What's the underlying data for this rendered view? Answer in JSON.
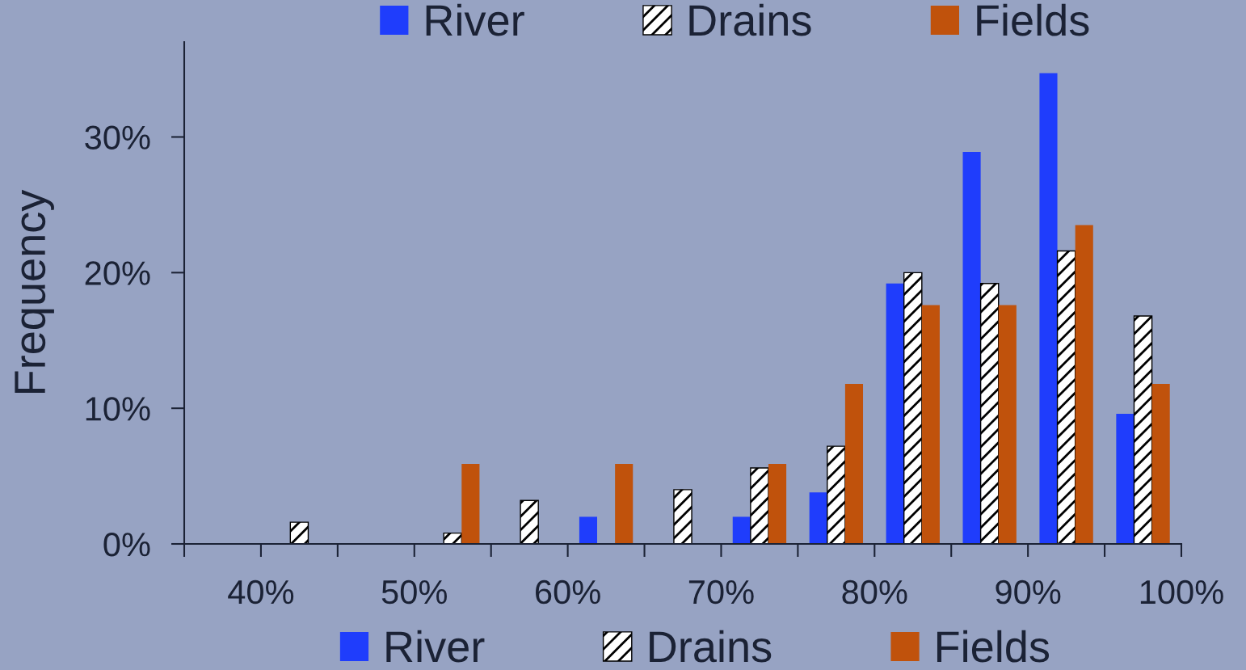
{
  "chart_data": {
    "type": "histogram",
    "ylabel": "Frequency",
    "bins": [
      35,
      40,
      45,
      50,
      55,
      60,
      65,
      70,
      75,
      80,
      85,
      90,
      95,
      100
    ],
    "series": [
      {
        "name": "River",
        "color": "#1f3dfc",
        "values": [
          0,
          0,
          0,
          0,
          0,
          2.0,
          0,
          2.0,
          3.8,
          19.2,
          28.9,
          34.7,
          9.6
        ]
      },
      {
        "name": "Drains",
        "color": "#ffffff",
        "values": [
          0,
          1.6,
          0,
          0.8,
          3.2,
          0,
          4.0,
          5.6,
          7.2,
          20.0,
          19.2,
          21.6,
          16.8
        ]
      },
      {
        "name": "Fields",
        "color": "#c0520c",
        "values": [
          0,
          0,
          0,
          5.9,
          0,
          5.9,
          0,
          5.9,
          11.8,
          17.6,
          17.6,
          23.5,
          11.8
        ]
      }
    ],
    "xlim": [
      35,
      100
    ],
    "xticks": [
      {
        "value": 35,
        "label": null
      },
      {
        "value": 40,
        "label": "40%"
      },
      {
        "value": 45,
        "label": null
      },
      {
        "value": 50,
        "label": "50%"
      },
      {
        "value": 55,
        "label": null
      },
      {
        "value": 60,
        "label": "60%"
      },
      {
        "value": 65,
        "label": null
      },
      {
        "value": 70,
        "label": "70%"
      },
      {
        "value": 75,
        "label": null
      },
      {
        "value": 80,
        "label": "80%"
      },
      {
        "value": 85,
        "label": null
      },
      {
        "value": 90,
        "label": "90%"
      },
      {
        "value": 95,
        "label": null
      },
      {
        "value": 100,
        "label": "100%"
      }
    ],
    "ylim": [
      0,
      37
    ],
    "yticks": [
      {
        "value": 0,
        "label": "0%"
      },
      {
        "value": 10,
        "label": "10%"
      },
      {
        "value": 20,
        "label": "20%"
      },
      {
        "value": 30,
        "label": "30%"
      }
    ],
    "legend": [
      "bottom",
      "top"
    ]
  }
}
